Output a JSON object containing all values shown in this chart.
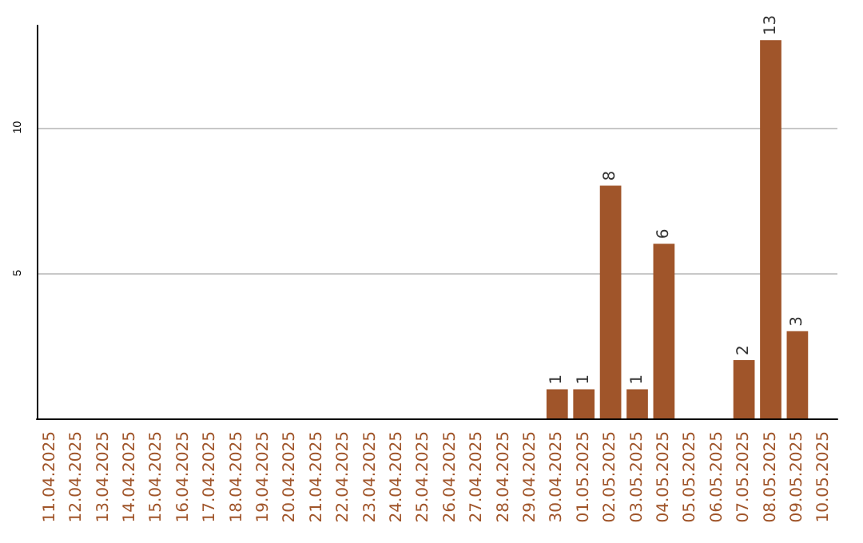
{
  "chart_data": {
    "type": "bar",
    "categories": [
      "11.04.2025",
      "12.04.2025",
      "13.04.2025",
      "14.04.2025",
      "15.04.2025",
      "16.04.2025",
      "17.04.2025",
      "18.04.2025",
      "19.04.2025",
      "20.04.2025",
      "21.04.2025",
      "22.04.2025",
      "23.04.2025",
      "24.04.2025",
      "25.04.2025",
      "26.04.2025",
      "27.04.2025",
      "28.04.2025",
      "29.04.2025",
      "30.04.2025",
      "01.05.2025",
      "02.05.2025",
      "03.05.2025",
      "04.05.2025",
      "05.05.2025",
      "06.05.2025",
      "07.05.2025",
      "08.05.2025",
      "09.05.2025",
      "10.05.2025"
    ],
    "values": [
      null,
      null,
      null,
      null,
      null,
      null,
      null,
      null,
      null,
      null,
      null,
      null,
      null,
      null,
      null,
      null,
      null,
      null,
      null,
      1,
      1,
      8,
      1,
      6,
      null,
      null,
      2,
      13,
      3,
      null
    ],
    "color": "#a0552a",
    "ylim": [
      0,
      13.5
    ],
    "yticks": [
      5,
      10
    ],
    "grid": "y",
    "data_labels": true
  }
}
